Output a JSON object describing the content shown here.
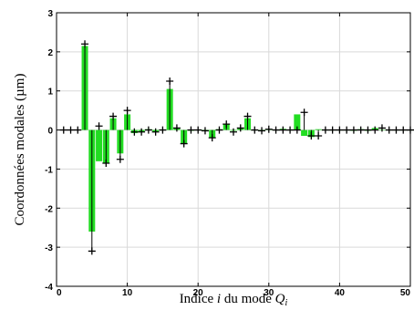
{
  "chart_data": {
    "type": "bar",
    "title": "",
    "ylabel": "Coordonnées modales (µm)",
    "xlabel_parts": {
      "prefix": "Indice ",
      "var_i": "i",
      "middle": " du mode ",
      "var_Q": "Q",
      "sub_i": "i"
    },
    "xlim": [
      0,
      50
    ],
    "ylim": [
      -4,
      3
    ],
    "x_ticks": [
      0,
      10,
      20,
      30,
      40,
      50
    ],
    "x_tick_labels": [
      "0",
      "10",
      "20",
      "30",
      "40",
      "50"
    ],
    "y_ticks": [
      -4,
      -3,
      -2,
      -1,
      0,
      1,
      2,
      3
    ],
    "y_tick_labels": [
      "-4",
      "-3",
      "-2",
      "-1",
      "0",
      "1",
      "2",
      "3"
    ],
    "grid": true,
    "series": [
      {
        "role": "bars",
        "color": "#22dd22",
        "x": [
          4,
          5,
          6,
          7,
          8,
          9,
          10,
          11,
          12,
          13,
          14,
          15,
          16,
          17,
          18,
          19,
          20,
          21,
          22,
          23,
          24,
          25,
          26,
          27,
          28,
          29,
          30,
          31,
          32,
          33,
          34,
          35,
          36,
          37,
          38,
          39,
          40,
          41,
          42,
          43,
          44,
          45,
          46,
          47,
          48,
          49,
          50
        ],
        "values": [
          2.15,
          -2.6,
          -0.8,
          -0.85,
          0.3,
          -0.6,
          0.4,
          -0.08,
          -0.05,
          0.02,
          -0.05,
          0.0,
          1.05,
          0.05,
          -0.35,
          -0.02,
          0.0,
          -0.02,
          -0.2,
          0.02,
          0.15,
          -0.02,
          0.05,
          0.3,
          0.0,
          -0.02,
          0.02,
          0.0,
          0.03,
          0.0,
          0.4,
          -0.15,
          -0.18,
          0.02,
          0.0,
          0.0,
          0.0,
          0.0,
          -0.02,
          0.02,
          -0.02,
          0.05,
          0.0,
          0.0,
          0.0,
          0.0,
          0.0
        ]
      },
      {
        "role": "markers",
        "color": "#000000",
        "x": [
          1,
          2,
          3,
          4,
          5,
          6,
          7,
          8,
          9,
          10,
          11,
          12,
          13,
          14,
          15,
          16,
          17,
          18,
          19,
          20,
          21,
          22,
          23,
          24,
          25,
          26,
          27,
          28,
          29,
          30,
          31,
          32,
          33,
          34,
          35,
          36,
          37,
          38,
          39,
          40,
          41,
          42,
          43,
          44,
          45,
          46,
          47,
          48,
          49,
          50
        ],
        "values": [
          0,
          0,
          0,
          2.2,
          -3.1,
          0.1,
          -0.85,
          0.35,
          -0.75,
          0.5,
          -0.05,
          -0.05,
          0.0,
          -0.05,
          0.0,
          1.25,
          0.05,
          -0.35,
          0.0,
          0.0,
          -0.02,
          -0.2,
          0.0,
          0.15,
          -0.05,
          0.05,
          0.35,
          0.0,
          -0.02,
          0.02,
          0.0,
          0.0,
          0.0,
          0.0,
          0.45,
          -0.15,
          -0.15,
          0.0,
          0.0,
          0.0,
          0.0,
          0.0,
          0.0,
          0.0,
          0.0,
          0.05,
          0.0,
          0.0,
          0.0,
          0.0
        ]
      }
    ]
  }
}
